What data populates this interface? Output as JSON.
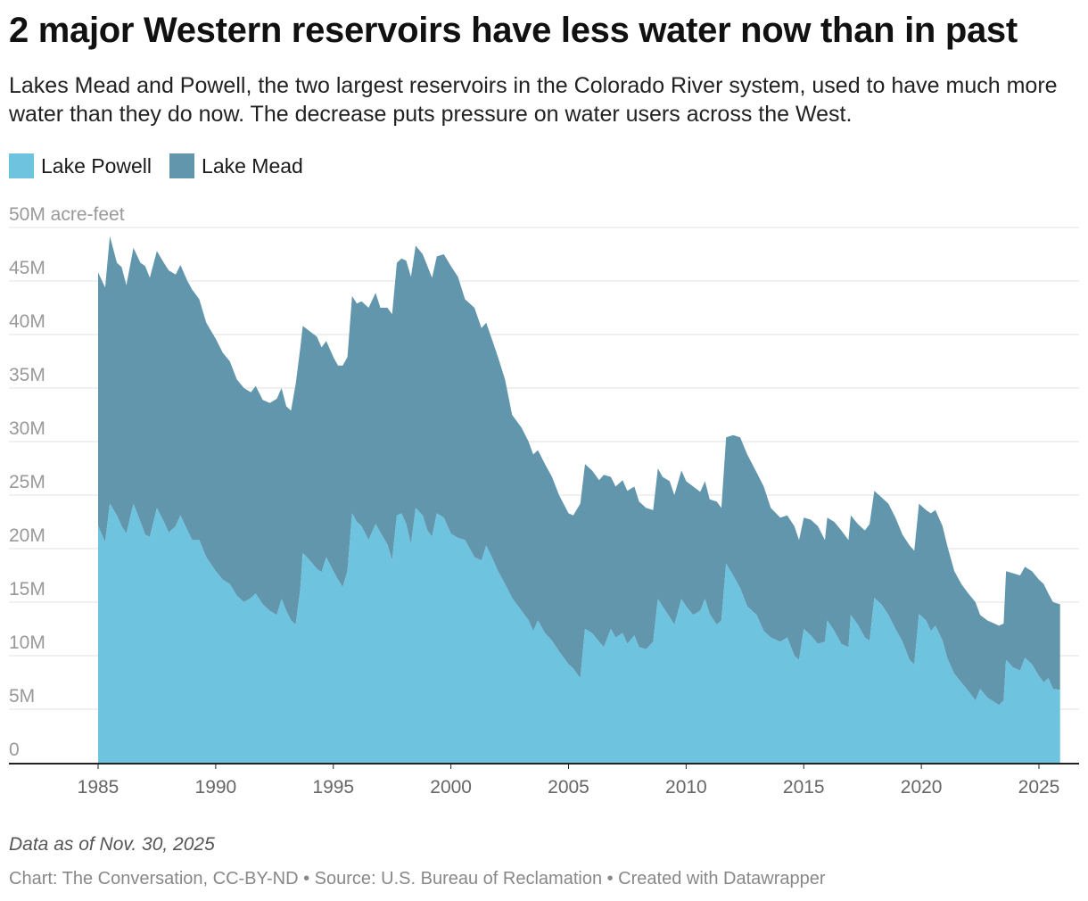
{
  "title": "2 major Western reservoirs have less water now than in past",
  "subtitle": "Lakes Mead and Powell, the two largest reservoirs in the Colorado River system, used to have much more water than they do now. The decrease puts pressure on water users across the West.",
  "note": "Data as of Nov. 30, 2025",
  "credit": "Chart: The Conversation, CC-BY-ND • Source: U.S. Bureau of Reclamation • Created with Datawrapper",
  "chart_data": {
    "type": "area",
    "stacked": true,
    "title": "2 major Western reservoirs have less water now than in past",
    "xlabel": "",
    "ylabel": "acre-feet",
    "xlim": [
      1985,
      2026
    ],
    "ylim": [
      0,
      50
    ],
    "grid": true,
    "legend_position": "top-left",
    "x_ticks": [
      "1985",
      "1990",
      "1995",
      "2000",
      "2005",
      "2010",
      "2015",
      "2020",
      "2025"
    ],
    "x_tick_values": [
      1985,
      1990,
      1995,
      2000,
      2005,
      2010,
      2015,
      2020,
      2025
    ],
    "y_ticks": [
      "0",
      "5M",
      "10M",
      "15M",
      "20M",
      "25M",
      "30M",
      "35M",
      "40M",
      "45M",
      "50M acre-feet"
    ],
    "y_tick_values": [
      0,
      5,
      10,
      15,
      20,
      25,
      30,
      35,
      40,
      45,
      50
    ],
    "x": [
      1985.0,
      1985.3,
      1985.5,
      1985.8,
      1986.0,
      1986.2,
      1986.5,
      1986.8,
      1987.0,
      1987.2,
      1987.5,
      1987.8,
      1988.0,
      1988.3,
      1988.5,
      1988.8,
      1989.0,
      1989.3,
      1989.6,
      1990.0,
      1990.3,
      1990.6,
      1990.9,
      1991.2,
      1991.5,
      1991.7,
      1992.0,
      1992.3,
      1992.6,
      1992.8,
      1993.0,
      1993.2,
      1993.4,
      1993.6,
      1993.7,
      1994.0,
      1994.3,
      1994.5,
      1994.7,
      1995.0,
      1995.2,
      1995.4,
      1995.6,
      1995.8,
      1996.0,
      1996.2,
      1996.5,
      1996.8,
      1997.0,
      1997.3,
      1997.5,
      1997.7,
      1997.9,
      1998.1,
      1998.3,
      1998.5,
      1998.8,
      1999.0,
      1999.2,
      1999.4,
      1999.7,
      2000.0,
      2000.3,
      2000.6,
      2001.0,
      2001.3,
      2001.5,
      2001.8,
      2002.0,
      2002.3,
      2002.6,
      2003.0,
      2003.3,
      2003.5,
      2003.7,
      2004.0,
      2004.3,
      2004.6,
      2005.0,
      2005.2,
      2005.5,
      2005.7,
      2006.0,
      2006.3,
      2006.5,
      2006.8,
      2007.0,
      2007.3,
      2007.5,
      2007.8,
      2008.0,
      2008.3,
      2008.6,
      2008.8,
      2009.0,
      2009.3,
      2009.5,
      2009.8,
      2010.0,
      2010.3,
      2010.6,
      2010.8,
      2011.0,
      2011.3,
      2011.5,
      2011.7,
      2012.0,
      2012.3,
      2012.6,
      2013.0,
      2013.3,
      2013.6,
      2014.0,
      2014.3,
      2014.6,
      2014.8,
      2015.0,
      2015.3,
      2015.6,
      2015.9,
      2016.0,
      2016.3,
      2016.6,
      2016.9,
      2017.0,
      2017.3,
      2017.6,
      2017.8,
      2018.0,
      2018.3,
      2018.6,
      2018.9,
      2019.2,
      2019.5,
      2019.7,
      2019.9,
      2020.2,
      2020.4,
      2020.6,
      2020.9,
      2021.1,
      2021.4,
      2021.7,
      2022.0,
      2022.3,
      2022.5,
      2022.8,
      2023.0,
      2023.3,
      2023.5,
      2023.6,
      2023.9,
      2024.2,
      2024.4,
      2024.7,
      2025.0,
      2025.2,
      2025.4,
      2025.6,
      2025.9
    ],
    "series": [
      {
        "name": "Lake Powell",
        "color": "#6ec3df",
        "unit": "million acre-feet",
        "values": [
          22.1,
          20.6,
          24.2,
          23.1,
          22.1,
          21.4,
          24.2,
          22.5,
          21.3,
          21.1,
          23.8,
          22.5,
          21.5,
          22.1,
          23.1,
          21.7,
          20.8,
          20.8,
          19.2,
          17.9,
          17.1,
          16.7,
          15.6,
          15.0,
          15.4,
          15.8,
          14.8,
          14.2,
          13.8,
          15.3,
          14.2,
          13.3,
          12.9,
          16.3,
          19.6,
          18.9,
          18.1,
          17.8,
          19.2,
          17.9,
          17.1,
          16.4,
          17.9,
          23.3,
          22.5,
          22.1,
          20.8,
          22.3,
          21.5,
          20.4,
          18.9,
          23.1,
          23.3,
          22.3,
          20.4,
          23.8,
          23.1,
          21.7,
          21.1,
          23.3,
          22.9,
          21.4,
          21.0,
          20.8,
          19.2,
          18.9,
          20.3,
          18.9,
          17.9,
          16.7,
          15.4,
          14.2,
          13.3,
          12.3,
          13.3,
          12.1,
          11.4,
          10.4,
          9.2,
          8.8,
          7.9,
          12.5,
          12.1,
          11.3,
          10.8,
          12.5,
          11.7,
          12.1,
          11.1,
          11.9,
          10.8,
          10.6,
          11.3,
          15.3,
          14.6,
          13.6,
          12.9,
          15.3,
          14.6,
          13.8,
          14.2,
          15.3,
          13.9,
          12.9,
          13.3,
          18.6,
          17.5,
          16.3,
          14.6,
          13.8,
          12.3,
          11.7,
          11.3,
          11.7,
          10.0,
          9.6,
          12.5,
          11.9,
          11.1,
          11.3,
          13.3,
          12.3,
          11.1,
          10.8,
          13.8,
          12.9,
          11.7,
          11.4,
          15.4,
          14.8,
          13.8,
          12.5,
          11.3,
          9.6,
          9.2,
          13.9,
          13.3,
          12.3,
          12.8,
          11.4,
          9.8,
          8.3,
          7.5,
          6.7,
          5.8,
          6.9,
          6.1,
          5.8,
          5.4,
          5.8,
          9.6,
          8.9,
          8.6,
          9.8,
          9.2,
          8.1,
          7.5,
          7.9,
          6.9,
          6.8
        ]
      },
      {
        "name": "Lake Mead",
        "color": "#6296ad",
        "unit": "million acre-feet",
        "values": [
          23.7,
          23.8,
          25.0,
          23.6,
          24.2,
          23.2,
          23.9,
          24.2,
          25.1,
          24.2,
          24.0,
          24.2,
          24.5,
          23.5,
          23.4,
          23.3,
          23.4,
          22.5,
          21.9,
          21.7,
          21.2,
          20.8,
          20.2,
          20.0,
          19.2,
          19.4,
          19.1,
          19.4,
          20.2,
          19.7,
          19.1,
          19.6,
          22.5,
          22.5,
          21.2,
          21.4,
          21.7,
          21.0,
          20.2,
          20.0,
          20.0,
          20.7,
          20.0,
          20.3,
          20.4,
          21.0,
          21.7,
          21.6,
          21.0,
          22.1,
          23.0,
          23.6,
          23.8,
          24.6,
          25.0,
          24.5,
          24.4,
          24.7,
          24.2,
          24.0,
          24.6,
          25.0,
          24.4,
          22.5,
          23.3,
          21.7,
          20.8,
          20.3,
          20.0,
          19.1,
          17.1,
          17.1,
          16.7,
          16.5,
          15.9,
          15.8,
          15.3,
          14.6,
          14.1,
          14.3,
          16.3,
          15.4,
          15.2,
          15.1,
          16.1,
          14.2,
          14.1,
          14.3,
          14.3,
          13.9,
          13.6,
          13.2,
          12.3,
          12.2,
          12.1,
          12.7,
          12.1,
          12.0,
          11.7,
          12.0,
          11.1,
          11.0,
          10.7,
          11.5,
          10.5,
          11.8,
          13.1,
          14.1,
          14.2,
          13.3,
          13.5,
          12.1,
          11.6,
          11.4,
          12.1,
          11.2,
          10.4,
          10.8,
          11.0,
          9.5,
          9.6,
          10.2,
          10.6,
          10.0,
          9.3,
          9.4,
          10.0,
          10.9,
          10.0,
          10.0,
          10.4,
          10.4,
          10.0,
          10.7,
          10.6,
          10.3,
          10.3,
          11.0,
          10.8,
          10.7,
          10.5,
          9.6,
          9.2,
          9.1,
          9.2,
          6.9,
          7.2,
          7.3,
          7.4,
          7.2,
          8.3,
          8.8,
          8.9,
          8.5,
          8.7,
          9.0,
          9.2,
          7.9,
          8.1,
          8.0
        ]
      }
    ]
  }
}
